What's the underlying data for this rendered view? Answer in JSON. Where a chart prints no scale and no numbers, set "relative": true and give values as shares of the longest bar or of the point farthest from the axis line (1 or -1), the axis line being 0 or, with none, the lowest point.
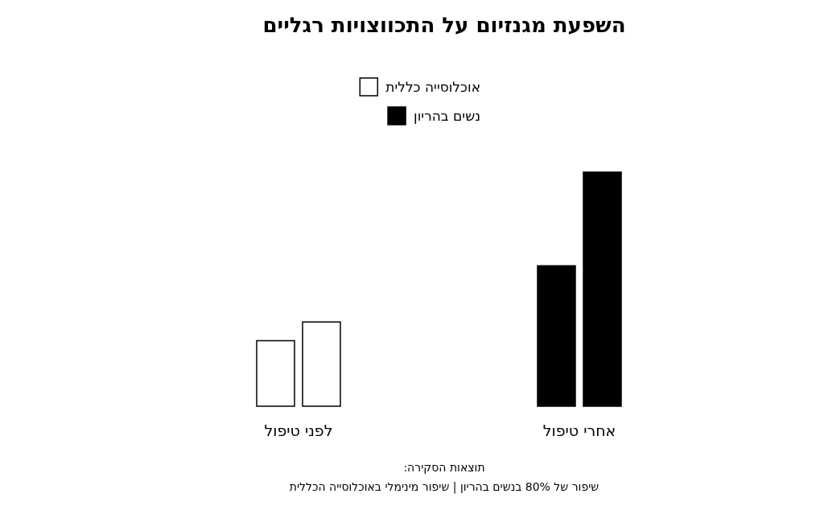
{
  "chart_data": {
    "type": "bar",
    "title": "השפעת מגנזיום על התכווצויות רגליים",
    "relative": true,
    "legend": "top",
    "categories": [
      "לפני טיפול",
      "אחרי טיפול"
    ],
    "series": [
      {
        "name": "אוכלוסייה כללית",
        "color": "#ffffff",
        "values": [
          0.28,
          null
        ]
      },
      {
        "name": "נשים בהריון",
        "color": "#000000",
        "values": [
          null,
          0.6
        ]
      },
      {
        "color": "#ffffff",
        "values": [
          0.36,
          null
        ]
      },
      {
        "color": "#000000",
        "values": [
          null,
          1
        ]
      }
    ],
    "annotations": [
      "תוצאות הסקירה:",
      "שיפור של 80% בנשים בהריון | שיפור מינימלי באוכלוסייה הכללית"
    ]
  }
}
